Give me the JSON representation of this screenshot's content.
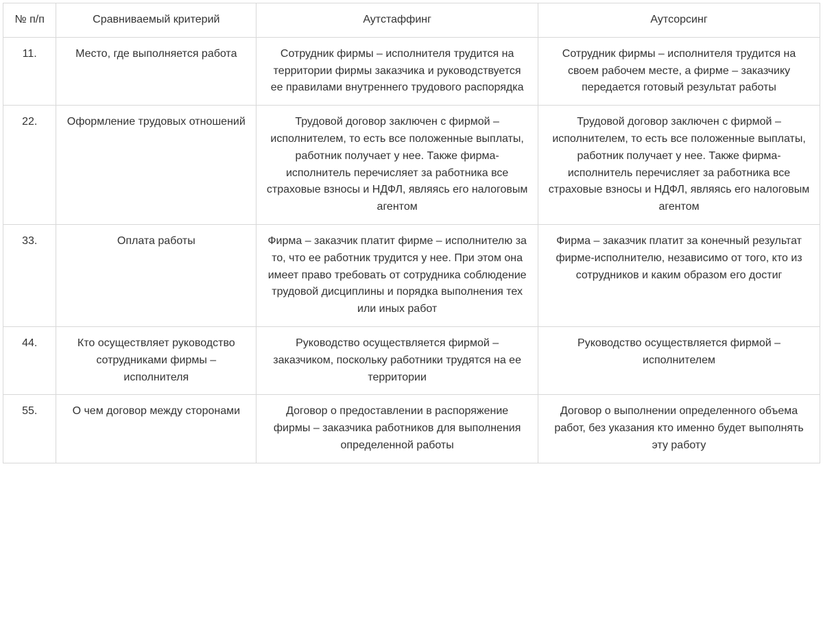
{
  "table": {
    "columns": [
      "№ п/п",
      "Сравниваемый критерий",
      "Аутстаффинг",
      "Аутсорсинг"
    ],
    "rows": [
      {
        "num": "11.",
        "criterion": "Место, где выполняется работа",
        "outstaffing": "Сотрудник фирмы – исполнителя трудится на территории фирмы заказчика и руководствуется ее правилами внутреннего трудового распорядка",
        "outsourcing": "Сотрудник фирмы – исполнителя трудится на своем рабочем месте, а фирме – заказчику передается готовый результат работы"
      },
      {
        "num": "22.",
        "criterion": "Оформление трудовых отношений",
        "outstaffing": "Трудовой договор заключен с фирмой –исполнителем, то есть все положенные выплаты, работник получает у нее. Также фирма-исполнитель перечисляет за работника все страховые взносы и НДФЛ, являясь его налоговым агентом",
        "outsourcing": "Трудовой договор заключен с фирмой – исполнителем, то есть все положенные выплаты, работник получает у нее. Также фирма-исполнитель перечисляет за работника все страховые взносы и НДФЛ, являясь его налоговым агентом"
      },
      {
        "num": "33.",
        "criterion": "Оплата работы",
        "outstaffing": "Фирма – заказчик платит фирме – исполнителю за то, что ее работник трудится у нее. При этом она имеет право требовать от сотрудника соблюдение трудовой дисциплины и порядка выполнения тех или иных работ",
        "outsourcing": "Фирма – заказчик платит за конечный результат фирме-исполнителю, независимо от того, кто из сотрудников и каким образом его достиг"
      },
      {
        "num": "44.",
        "criterion": "Кто осуществляет руководство сотрудниками фирмы – исполнителя",
        "outstaffing": "Руководство осуществляется фирмой – заказчиком, поскольку работники трудятся на ее территории",
        "outsourcing": "Руководство осуществляется фирмой – исполнителем"
      },
      {
        "num": "55.",
        "criterion": "О чем договор между сторонами",
        "outstaffing": "Договор о предоставлении в распоряжение фирмы – заказчика работников для выполнения определенной работы",
        "outsourcing": "Договор о выполнении определенного объема работ, без указания кто именно будет выполнять эту работу"
      }
    ],
    "colors": {
      "border": "#d8d8d8",
      "text": "#333333",
      "background": "#ffffff"
    },
    "typography": {
      "font_family": "Arial",
      "font_size_pt": 12,
      "line_height": 1.55,
      "text_align": "center"
    }
  }
}
